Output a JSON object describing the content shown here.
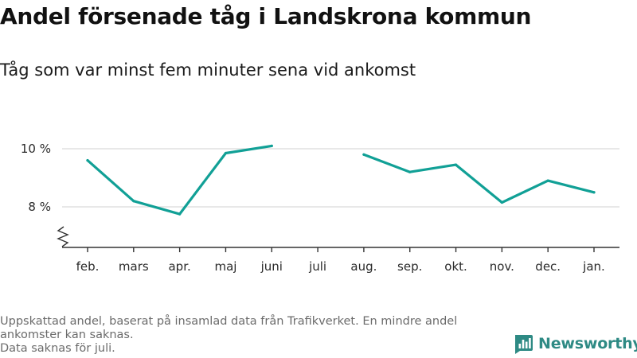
{
  "title": "Andel försenade tåg i Landskrona kommun",
  "subtitle": "Tåg som var minst fem minuter sena vid ankomst",
  "footnote_lines": [
    "Uppskattad andel, baserat på insamlad data från Trafikverket. En mindre andel ankomster kan saknas.",
    "Data saknas för juli."
  ],
  "brand": {
    "name": "Newsworthy",
    "icon": "newsworthy-logo-icon",
    "color": "#2e8a84"
  },
  "chart_data": {
    "type": "line",
    "title": "Andel försenade tåg i Landskrona kommun",
    "subtitle": "Tåg som var minst fem minuter sena vid ankomst",
    "categories": [
      "feb.",
      "mars",
      "apr.",
      "maj",
      "juni",
      "juli",
      "aug.",
      "sep.",
      "okt.",
      "nov.",
      "dec.",
      "jan."
    ],
    "series": [
      {
        "values": [
          9.6,
          8.2,
          7.75,
          9.85,
          10.1,
          null,
          9.8,
          9.2,
          9.45,
          8.15,
          8.9,
          8.5
        ],
        "color": "#11a096"
      }
    ],
    "y_ticks": [
      {
        "value": 8,
        "label": "8 %"
      },
      {
        "value": 10,
        "label": "10 %"
      }
    ],
    "ylim": [
      7.0,
      10.5
    ],
    "y_axis_break": true,
    "grid": true,
    "legend": "none"
  }
}
